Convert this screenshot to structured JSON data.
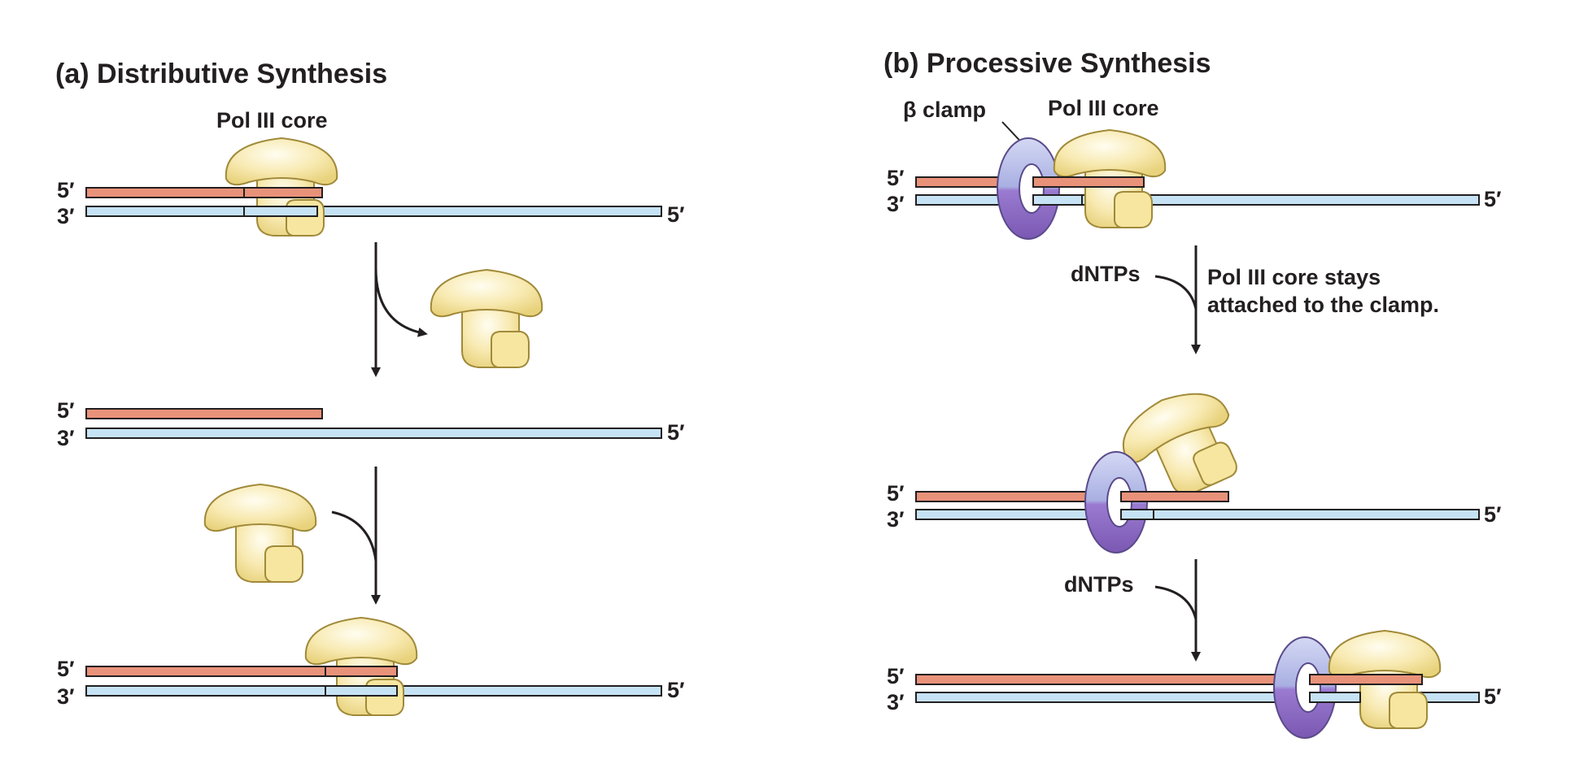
{
  "panel_a": {
    "title": "(a)  Distributive Synthesis",
    "pol_label": "Pol III core",
    "end_5": "5′",
    "end_3": "3′"
  },
  "panel_b": {
    "title": "(b)  Processive Synthesis",
    "clamp_label": "β clamp",
    "pol_label": "Pol III core",
    "dntps_1": "dNTPs",
    "dntps_2": "dNTPs",
    "note_line1": "Pol III core stays",
    "note_line2": "attached to the clamp.",
    "end_5": "5′",
    "end_3": "3′"
  },
  "colors": {
    "new_strand": "#e9927a",
    "template_strand": "#c6e3f5",
    "strand_outline": "#231f20",
    "pol_fill": "#f5e7a6",
    "pol_highlight": "#fffbe6",
    "pol_outline": "#a08a3a",
    "clamp_top": "#b7bde8",
    "clamp_bottom": "#8a6cc0",
    "arrow": "#231f20"
  }
}
